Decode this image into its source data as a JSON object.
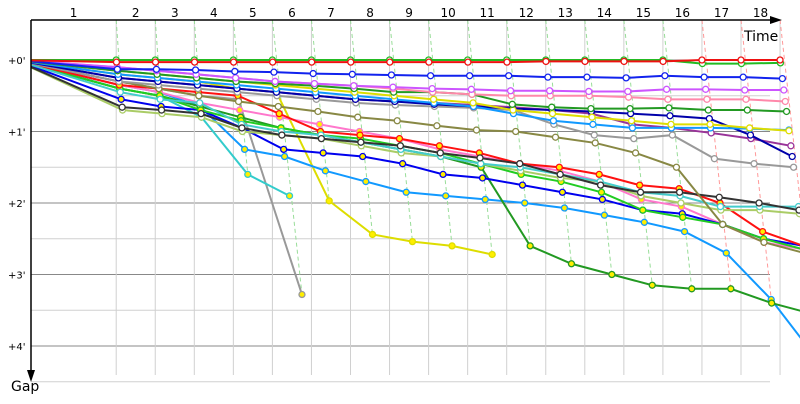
{
  "chart_data": {
    "type": "line",
    "title": "",
    "xlabel": "Time",
    "ylabel": "Gap",
    "x_tick_labels": [
      "1",
      "2",
      "3",
      "4",
      "5",
      "6",
      "7",
      "8",
      "9",
      "10",
      "11",
      "12",
      "13",
      "14",
      "15",
      "16",
      "17",
      "18"
    ],
    "y_tick_labels": [
      "+0'",
      "+1'",
      "+2'",
      "+3'",
      "+4'"
    ],
    "y_ticks": [
      0,
      1,
      2,
      3,
      4
    ],
    "ylim": [
      0,
      4.5
    ],
    "y_inverted": true,
    "grid": true,
    "lap_end_times": [
      1.2,
      1.75,
      2.3,
      2.85,
      3.4,
      3.95,
      4.5,
      5.05,
      5.6,
      6.15,
      6.7,
      7.25,
      7.8,
      8.35,
      8.9,
      9.45,
      10.0,
      10.55
    ],
    "lap_line_colors": {
      "normal": "#99dd99",
      "final": "#ff9999"
    },
    "series": [
      {
        "color": "#ee1111",
        "marker": "#ffffff",
        "values": [
          0.03,
          0.03,
          0.03,
          0.03,
          0.03,
          0.03,
          0.03,
          0.03,
          0.03,
          0.03,
          0.03,
          0.02,
          0.02,
          0.02,
          0.02,
          0,
          0,
          0
        ]
      },
      {
        "color": "#22bb22",
        "marker": "#ffffff",
        "values": [
          0,
          0,
          0,
          0,
          0,
          0,
          0,
          0,
          0,
          0,
          0,
          0,
          0,
          0,
          0,
          0.05,
          0.05,
          0.04
        ]
      },
      {
        "color": "#1122ee",
        "marker": "#ffffff",
        "values": [
          0.13,
          0.13,
          0.14,
          0.16,
          0.17,
          0.19,
          0.2,
          0.21,
          0.22,
          0.22,
          0.22,
          0.24,
          0.24,
          0.25,
          0.22,
          0.24,
          0.24,
          0.26
        ]
      },
      {
        "color": "#cc55ff",
        "marker": "#ffffff",
        "values": [
          0.1,
          0.15,
          0.2,
          0.25,
          0.3,
          0.33,
          0.36,
          0.38,
          0.4,
          0.41,
          0.43,
          0.43,
          0.44,
          0.44,
          0.41,
          0.41,
          0.42,
          0.42
        ]
      },
      {
        "color": "#ff88aa",
        "marker": "#ffffff",
        "values": [
          0.1,
          0.15,
          0.2,
          0.25,
          0.3,
          0.33,
          0.36,
          0.4,
          0.45,
          0.48,
          0.5,
          0.5,
          0.5,
          0.52,
          0.55,
          0.55,
          0.55,
          0.58
        ]
      },
      {
        "color": "#229922",
        "marker": "#ffffff",
        "values": [
          0.15,
          0.2,
          0.25,
          0.3,
          0.33,
          0.36,
          0.4,
          0.45,
          0.45,
          0.48,
          0.62,
          0.66,
          0.68,
          0.68,
          0.67,
          0.7,
          0.7,
          0.72
        ]
      },
      {
        "color": "#dddd00",
        "marker": "#ffffff",
        "values": [
          0.15,
          0.2,
          0.25,
          0.3,
          0.35,
          0.4,
          0.45,
          0.5,
          0.55,
          0.6,
          0.7,
          0.75,
          0.8,
          0.85,
          0.9,
          0.9,
          0.95,
          0.99
        ]
      },
      {
        "color": "#1199ff",
        "marker": "#ffffff",
        "values": [
          0.2,
          0.25,
          0.3,
          0.35,
          0.4,
          0.45,
          0.5,
          0.55,
          0.6,
          0.65,
          0.75,
          0.85,
          0.9,
          0.95,
          0.95,
          0.95,
          0.96,
          0.98
        ]
      },
      {
        "color": "#0000aa",
        "marker": "#ffffff",
        "values": [
          0.25,
          0.3,
          0.35,
          0.4,
          0.45,
          0.5,
          0.55,
          0.58,
          0.62,
          0.65,
          0.68,
          0.7,
          0.72,
          0.75,
          0.78,
          0.82,
          1.05,
          1.35
        ]
      },
      {
        "color": "#993399",
        "marker": "#ffffff",
        "values": [
          0.25,
          0.3,
          0.35,
          0.4,
          0.45,
          0.5,
          0.55,
          0.58,
          0.6,
          0.63,
          0.66,
          0.7,
          0.75,
          0.9,
          0.95,
          1.02,
          1.1,
          1.2
        ]
      },
      {
        "color": "#999999",
        "marker": "#ffffff",
        "values": [
          0.3,
          0.35,
          0.4,
          0.45,
          0.5,
          0.55,
          0.6,
          0.63,
          0.65,
          0.67,
          0.7,
          0.9,
          1.05,
          1.1,
          1.05,
          1.38,
          1.45,
          1.5
        ]
      },
      {
        "color": "#888844",
        "marker": "#ffffff",
        "values": [
          0.3,
          0.4,
          0.5,
          0.58,
          0.65,
          0.72,
          0.8,
          0.85,
          0.92,
          0.98,
          1.0,
          1.08,
          1.16,
          1.3,
          1.5,
          2.3,
          2.55,
          2.7
        ]
      },
      {
        "color": "#333333",
        "marker": "#ffffff",
        "values": [
          0.66,
          0.7,
          0.75,
          0.95,
          1.05,
          1.1,
          1.15,
          1.2,
          1.3,
          1.37,
          1.45,
          1.6,
          1.75,
          1.85,
          1.85,
          1.92,
          2.0,
          2.1
        ]
      },
      {
        "color": "#44cccc",
        "marker": "#ffffff",
        "values": [
          0.45,
          0.55,
          0.6,
          0.9,
          1.0,
          1.05,
          1.15,
          1.25,
          1.35,
          1.45,
          1.5,
          1.6,
          1.7,
          1.85,
          1.9,
          2.05,
          2.05,
          2.05
        ]
      },
      {
        "color": "#aacc66",
        "marker": "#ffffff",
        "values": [
          0.7,
          0.75,
          0.8,
          1.0,
          1.05,
          1.1,
          1.2,
          1.3,
          1.35,
          1.45,
          1.55,
          1.65,
          1.7,
          1.9,
          2.0,
          2.1,
          2.1,
          2.15
        ]
      },
      {
        "color": "#ff1111",
        "marker": "#ffee00",
        "values": [
          0.35,
          0.4,
          0.45,
          0.5,
          0.75,
          1.0,
          1.05,
          1.1,
          1.2,
          1.3,
          1.45,
          1.5,
          1.6,
          1.75,
          1.8,
          2.0,
          2.4,
          2.6
        ]
      },
      {
        "color": "#22cc22",
        "marker": "#ffee00",
        "values": [
          0.4,
          0.5,
          0.7,
          0.85,
          0.95,
          1.05,
          1.1,
          1.2,
          1.3,
          1.45,
          1.6,
          1.7,
          1.85,
          2.1,
          2.2,
          2.3,
          2.5,
          2.65
        ]
      },
      {
        "color": "#0000ee",
        "marker": "#ffee00",
        "values": [
          0.55,
          0.65,
          0.7,
          0.95,
          1.25,
          1.3,
          1.35,
          1.45,
          1.6,
          1.65,
          1.75,
          1.85,
          1.95,
          2.1,
          2.15,
          2.3,
          2.5,
          2.6
        ]
      },
      {
        "color": "#ff77cc",
        "marker": "#ffee00",
        "values": [
          0.35,
          0.45,
          0.6,
          0.7,
          0.8,
          0.9,
          1.0,
          1.1,
          1.25,
          1.35,
          1.45,
          1.55,
          1.7,
          1.95,
          2.05,
          2.3,
          2.55,
          2.65
        ]
      },
      {
        "color": "#229922",
        "marker": "#ffee00",
        "values": [
          0.4,
          0.5,
          0.65,
          0.8,
          0.95,
          1.05,
          1.15,
          1.25,
          1.35,
          1.5,
          2.6,
          2.85,
          3.0,
          3.15,
          3.2,
          3.2,
          3.4,
          3.55
        ]
      },
      {
        "color": "#1199ff",
        "marker": "#ffee00",
        "values": [
          0.35,
          0.45,
          0.65,
          1.25,
          1.35,
          1.55,
          1.7,
          1.85,
          1.9,
          1.95,
          2.0,
          2.07,
          2.17,
          2.27,
          2.4,
          2.7,
          3.35,
          4.2
        ]
      },
      {
        "color": "#dddd00",
        "marker": "#ffee00",
        "values": [
          0.2,
          0.25,
          0.3,
          0.4,
          0.45,
          1.97,
          2.44,
          2.54,
          2.6,
          2.72,
          null,
          null,
          null,
          null,
          null,
          null,
          null,
          null
        ]
      },
      {
        "color": "#33cccc",
        "marker": "#ffee00",
        "values": [
          0.4,
          0.5,
          0.8,
          1.6,
          1.9,
          null,
          null,
          null,
          null,
          null,
          null,
          null,
          null,
          null,
          null,
          null,
          null,
          null
        ]
      },
      {
        "color": "#999999",
        "marker": "#ffee00",
        "values": [
          0.3,
          0.4,
          0.5,
          0.55,
          3.28,
          null,
          null,
          null,
          null,
          null,
          null,
          null,
          null,
          null,
          null,
          null,
          null,
          null
        ]
      }
    ]
  }
}
